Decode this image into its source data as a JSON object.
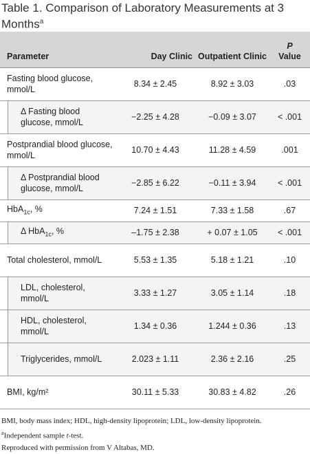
{
  "title": {
    "label": "Table 1.",
    "text": "Comparison of Laboratory Measurements at 3 Months",
    "sup": "a"
  },
  "table": {
    "header": {
      "parameter": "Parameter",
      "day": "Day Clinic",
      "outpatient": "Outpatient Clinic",
      "p_italic": "P",
      "p_rest": "Value"
    },
    "rows": [
      {
        "label": "Fasting blood glucose, mmol/L",
        "day": "8.34 ± 2.45",
        "outpatient": "8.92 ± 3.03",
        "p": ".03",
        "indent": false
      },
      {
        "label": "Δ Fasting blood glucose, mmol/L",
        "day": "−2.25 ± 4.28",
        "outpatient": "−0.09 ± 3.07",
        "p": "< .001",
        "indent": true
      },
      {
        "label": "Postprandial blood glucose, mmol/L",
        "day": "10.70 ± 4.43",
        "outpatient": "11.28 ± 4.59",
        "p": ".001",
        "indent": false
      },
      {
        "label": "Δ Postprandial blood glucose, mmol/L",
        "day": "−2.85 ± 6.22",
        "outpatient": "−0.11 ± 3.94",
        "p": "< .001",
        "indent": true
      },
      {
        "label": "HbA",
        "label_sub": "1c",
        "label_after": ", %",
        "day": "7.24 ± 1.51",
        "outpatient": "7.33 ± 1.58",
        "p": ".67",
        "indent": false
      },
      {
        "label": "Δ HbA",
        "label_sub": "1c",
        "label_after": ", %",
        "day": "–1.75 ± 2.38",
        "outpatient": "+ 0.07 ± 1.05",
        "p": "< .001",
        "indent": true
      },
      {
        "label": "Total cholesterol, mmol/L",
        "day": "5.53 ± 1.35",
        "outpatient": "5.18 ± 1.21",
        "p": ".10",
        "indent": false
      },
      {
        "label": "LDL, cholesterol, mmol/L",
        "day": "3.33 ± 1.27",
        "outpatient": "3.05 ± 1.14",
        "p": ".18",
        "indent": true
      },
      {
        "label": "HDL, cholesterol, mmol/L",
        "day": "1.34 ± 0.36",
        "outpatient": "1.244 ± 0.36",
        "p": ".13",
        "indent": true
      },
      {
        "label": "Triglycerides, mmol/L",
        "day": "2.023 ± 1.11",
        "outpatient": "2.36 ± 2.16",
        "p": ".25",
        "indent": true
      },
      {
        "label": "BMI, kg/m²",
        "day": "30.11 ± 5.33",
        "outpatient": "30.83 ± 4.82",
        "p": ".26",
        "indent": false
      }
    ]
  },
  "footnotes": {
    "abbrev": "BMI, body mass index; HDL, high-density lipoprotein; LDL, low-density lipoprotein.",
    "a_mark": "a",
    "a_before": "Independent sample ",
    "a_italic": "t",
    "a_after": "-test.",
    "credit": "Reproduced with permission from V Altabas, MD."
  }
}
